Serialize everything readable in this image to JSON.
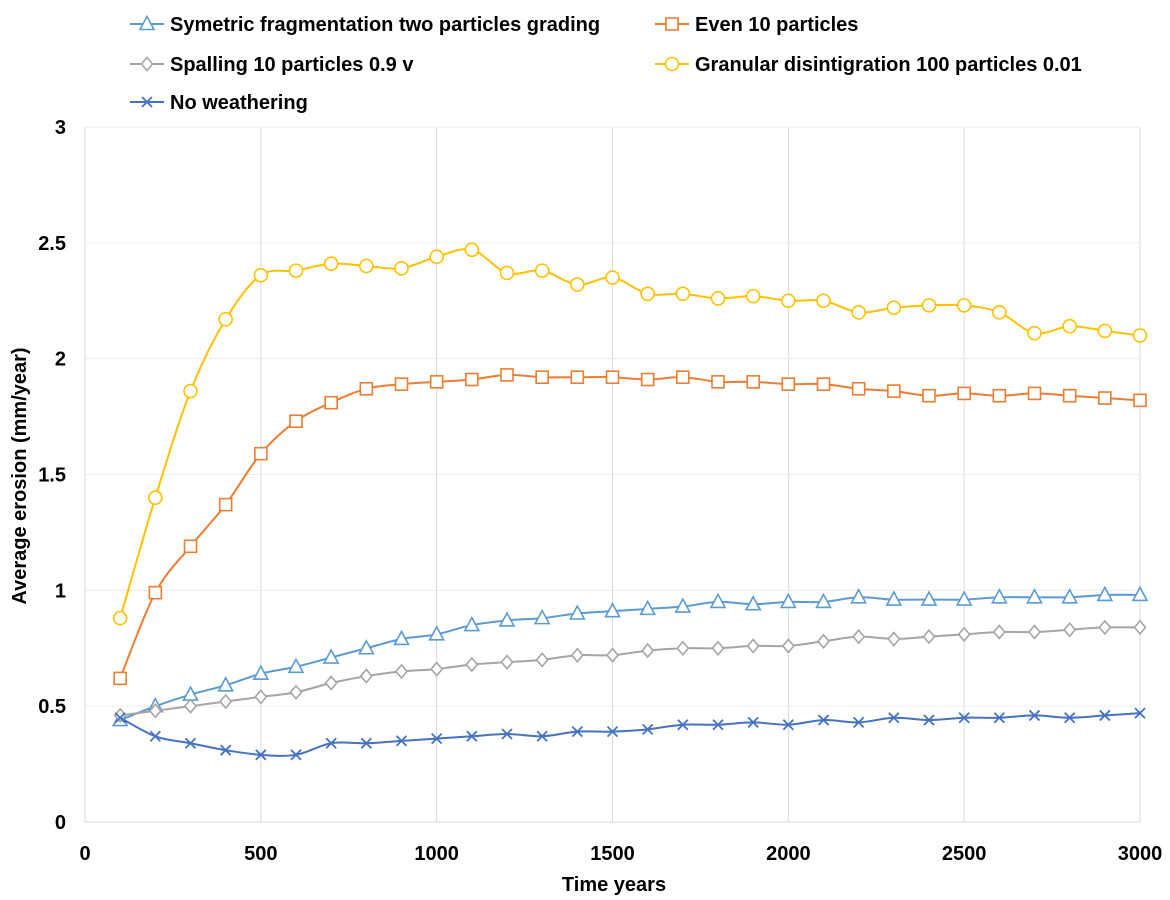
{
  "chart_data": {
    "type": "line",
    "title": "",
    "xlabel": "Time years",
    "ylabel": "Average erosion (mm/year)",
    "xlim": [
      0,
      3000
    ],
    "ylim": [
      0,
      3
    ],
    "grid": "vertical",
    "legend_position": "top",
    "x_ticks": [
      0,
      500,
      1000,
      1500,
      2000,
      2500,
      3000
    ],
    "y_ticks": [
      0,
      0.5,
      1,
      1.5,
      2,
      2.5,
      3
    ],
    "x_tick_labels": [
      "0",
      "500",
      "1000",
      "1500",
      "2000",
      "2500",
      "3000"
    ],
    "y_tick_labels": [
      "0",
      "0.5",
      "1",
      "1.5",
      "2",
      "2.5",
      "3"
    ],
    "x": [
      100,
      200,
      300,
      400,
      500,
      600,
      700,
      800,
      900,
      1000,
      1100,
      1200,
      1300,
      1400,
      1500,
      1600,
      1700,
      1800,
      1900,
      2000,
      2100,
      2200,
      2300,
      2400,
      2500,
      2600,
      2700,
      2800,
      2900,
      3000
    ],
    "series": [
      {
        "name": "Symetric fragmentation two particles grading",
        "color": "#5B9BD5",
        "marker": "triangle",
        "values": [
          0.44,
          0.5,
          0.55,
          0.59,
          0.64,
          0.67,
          0.71,
          0.75,
          0.79,
          0.81,
          0.85,
          0.87,
          0.88,
          0.9,
          0.91,
          0.92,
          0.93,
          0.95,
          0.94,
          0.95,
          0.95,
          0.97,
          0.96,
          0.96,
          0.96,
          0.97,
          0.97,
          0.97,
          0.98,
          0.98
        ]
      },
      {
        "name": "Even 10 particles",
        "color": "#ED7D31",
        "marker": "square",
        "values": [
          0.62,
          0.99,
          1.19,
          1.37,
          1.59,
          1.73,
          1.81,
          1.87,
          1.89,
          1.9,
          1.91,
          1.93,
          1.92,
          1.92,
          1.92,
          1.91,
          1.92,
          1.9,
          1.9,
          1.89,
          1.89,
          1.87,
          1.86,
          1.84,
          1.85,
          1.84,
          1.85,
          1.84,
          1.83,
          1.82
        ]
      },
      {
        "name": "Spalling 10 particles 0.9 v",
        "color": "#A5A5A5",
        "marker": "diamond",
        "values": [
          0.46,
          0.48,
          0.5,
          0.52,
          0.54,
          0.56,
          0.6,
          0.63,
          0.65,
          0.66,
          0.68,
          0.69,
          0.7,
          0.72,
          0.72,
          0.74,
          0.75,
          0.75,
          0.76,
          0.76,
          0.78,
          0.8,
          0.79,
          0.8,
          0.81,
          0.82,
          0.82,
          0.83,
          0.84,
          0.84
        ]
      },
      {
        "name": "Granular disintigration 100 particles 0.01",
        "color": "#FFC000",
        "marker": "circle",
        "values": [
          0.88,
          1.4,
          1.86,
          2.17,
          2.36,
          2.38,
          2.41,
          2.4,
          2.39,
          2.44,
          2.47,
          2.37,
          2.38,
          2.32,
          2.35,
          2.28,
          2.28,
          2.26,
          2.27,
          2.25,
          2.25,
          2.2,
          2.22,
          2.23,
          2.23,
          2.2,
          2.11,
          2.14,
          2.12,
          2.1
        ]
      },
      {
        "name": "No weathering",
        "color": "#4472C4",
        "marker": "x",
        "values": [
          0.45,
          0.37,
          0.34,
          0.31,
          0.29,
          0.29,
          0.34,
          0.34,
          0.35,
          0.36,
          0.37,
          0.38,
          0.37,
          0.39,
          0.39,
          0.4,
          0.42,
          0.42,
          0.43,
          0.42,
          0.44,
          0.43,
          0.45,
          0.44,
          0.45,
          0.45,
          0.46,
          0.45,
          0.46,
          0.47
        ]
      }
    ]
  }
}
